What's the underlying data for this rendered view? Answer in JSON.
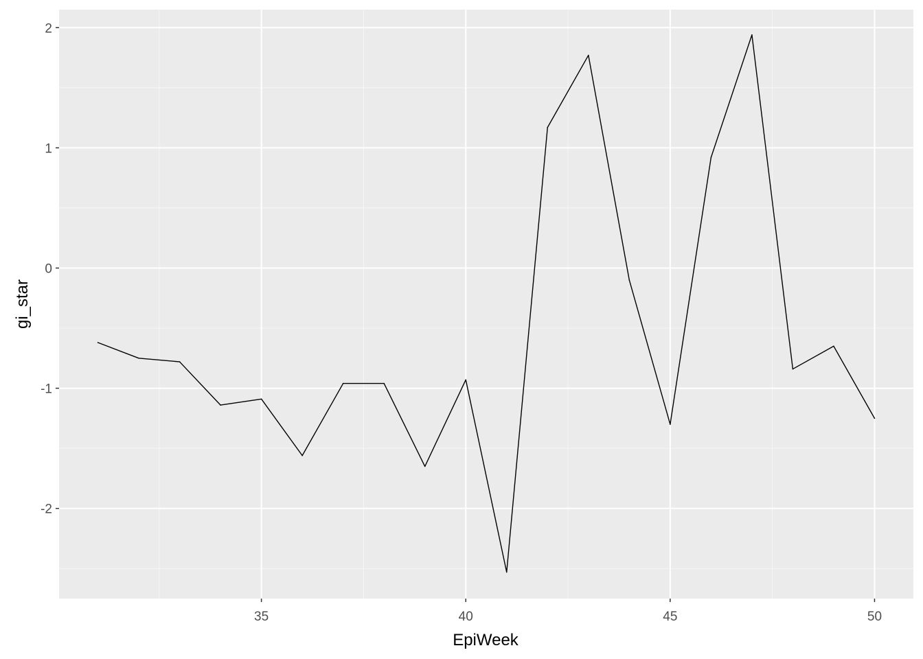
{
  "chart_data": {
    "type": "line",
    "title": "",
    "xlabel": "EpiWeek",
    "ylabel": "gi_star",
    "xlim": [
      30.05,
      50.95
    ],
    "ylim": [
      -2.75,
      2.15
    ],
    "x_ticks": [
      35,
      40,
      45,
      50
    ],
    "x_tick_labels": [
      "35",
      "40",
      "45",
      "50"
    ],
    "y_ticks": [
      -2,
      -1,
      0,
      1,
      2
    ],
    "y_tick_labels": [
      "-2",
      "-1",
      "0",
      "1",
      "2"
    ],
    "grid": true,
    "legend": "none",
    "series": [
      {
        "x": [
          31,
          32,
          33,
          34,
          35,
          36,
          37,
          38,
          39,
          40,
          41,
          42,
          43,
          44,
          45,
          46,
          47,
          48,
          49,
          50
        ],
        "values": [
          -0.62,
          -0.75,
          -0.78,
          -1.14,
          -1.09,
          -1.56,
          -0.96,
          -0.96,
          -1.65,
          -0.93,
          -2.53,
          1.17,
          1.77,
          -0.1,
          -1.3,
          0.92,
          1.94,
          -0.84,
          -0.65,
          -1.25
        ],
        "color": "#000000"
      }
    ],
    "colors": {
      "panel_background": "#ebebeb",
      "grid_major": "#ffffff",
      "grid_minor": "#f5f5f5",
      "line": "#000000"
    }
  }
}
